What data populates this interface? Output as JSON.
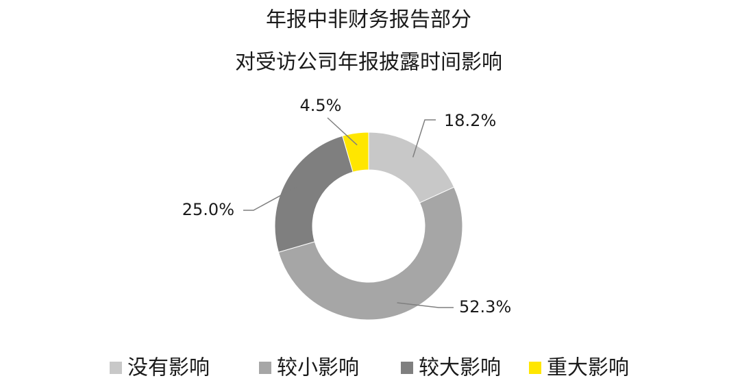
{
  "chart_data": {
    "type": "pie",
    "title": [
      "年报中非财务报告部分",
      "对受访公司年报披露时间影响"
    ],
    "categories": [
      "没有影响",
      "较小影响",
      "较大影响",
      "重大影响"
    ],
    "values": [
      18.2,
      52.3,
      25.0,
      4.5
    ],
    "value_labels": [
      "18.2%",
      "52.3%",
      "25.0%",
      "4.5%"
    ],
    "colors": [
      "#c8c8c8",
      "#a6a6a6",
      "#7f7f7f",
      "#ffe600"
    ],
    "donut": true,
    "legend": "bottom"
  }
}
